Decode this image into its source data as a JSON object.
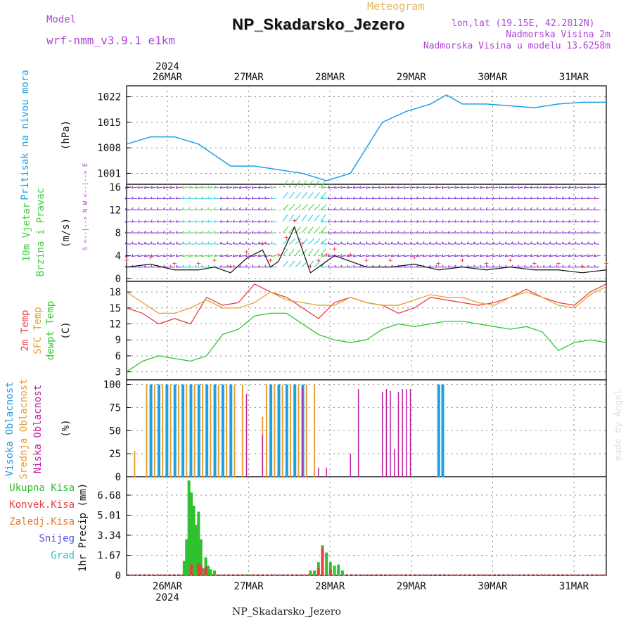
{
  "header": {
    "model_label": "Model",
    "model_name": "wrf-nmm_v3.9.1  e1km",
    "product": "Meteogram",
    "location": "NP_Skadarsko_Jezero",
    "lonlat": "lon,lat (19.15E, 42.2812N)",
    "elev": "Nadmorska Visina 2m",
    "model_elev": "Nadmorska Visina u modelu 13.6258m"
  },
  "footer": {
    "location": "NP_Skadarsko_Jezero",
    "credit": "made by Angel"
  },
  "colors": {
    "pressure": "#1ea0e6",
    "wind_purple": "#7a1fd0",
    "wind_cyan": "#18c8d0",
    "wind_green": "#40d040",
    "t2m": "#e84040",
    "tsfc": "#e8a030",
    "dewpt": "#30c830",
    "cloud_high": "#1ea0e6",
    "cloud_mid": "#e8a030",
    "cloud_low": "#c020a0",
    "precip_total": "#30c030",
    "precip_conv": "#e84040"
  },
  "chart_data": [
    {
      "type": "line",
      "panel": "pressure",
      "title": "",
      "ylabel": "Pritisak na nivou mora",
      "unit": "(hPa)",
      "x_top_year": "2024",
      "x_top": [
        "26MAR",
        "27MAR",
        "28MAR",
        "29MAR",
        "30MAR",
        "31MAR"
      ],
      "ylim": [
        998,
        1025
      ],
      "yticks": [
        1001,
        1008,
        1015,
        1022
      ],
      "grid": true,
      "series": [
        {
          "name": "",
          "x": [
            0,
            0.3,
            0.6,
            0.9,
            1.1,
            1.3,
            1.6,
            1.9,
            2.2,
            2.5,
            2.8,
            3.0,
            3.2,
            3.5,
            3.8,
            4.0,
            4.2,
            4.5,
            4.8,
            5.1,
            5.4,
            5.7,
            6.0
          ],
          "values": [
            1009,
            1011,
            1011,
            1009,
            1006,
            1003,
            1003,
            1002,
            1001,
            999,
            1001,
            1008,
            1015,
            1018,
            1020,
            1022.5,
            1020,
            1020,
            1019.5,
            1019,
            1020,
            1020.5,
            1020.5
          ]
        }
      ]
    },
    {
      "type": "line",
      "panel": "wind",
      "ylabel": "10m Vjetar Brzina i Pravac",
      "unit": "(m/s)",
      "direction_key": "S <--|--> N    W <--|--> E",
      "ylim": [
        -0.5,
        16.5
      ],
      "yticks": [
        0,
        4,
        8,
        12,
        16
      ],
      "grid": true,
      "series": [
        {
          "name": "",
          "x": [
            0,
            0.3,
            0.6,
            0.9,
            1.1,
            1.3,
            1.5,
            1.7,
            1.8,
            1.9,
            2.0,
            2.1,
            2.2,
            2.3,
            2.4,
            2.5,
            2.6,
            2.8,
            3.0,
            3.3,
            3.6,
            3.9,
            4.2,
            4.5,
            4.8,
            5.1,
            5.4,
            5.7,
            6.0
          ],
          "values": [
            2,
            2.5,
            1.5,
            1.5,
            2,
            1,
            3.5,
            5,
            2,
            3,
            6,
            9,
            5,
            1,
            2,
            3,
            4,
            3,
            2,
            2,
            2.5,
            1.5,
            2,
            1.5,
            2,
            1.5,
            1.5,
            1,
            1.5
          ]
        }
      ]
    },
    {
      "type": "line",
      "panel": "temperature",
      "ylabel": "2m Temp / SFC Temp / dewpt Temp",
      "unit": "(C)",
      "ylim": [
        1.5,
        20
      ],
      "yticks": [
        3,
        6,
        9,
        12,
        15,
        18
      ],
      "grid": true,
      "series": [
        {
          "name": "2m Temp",
          "x": [
            0,
            0.2,
            0.4,
            0.6,
            0.8,
            1.0,
            1.2,
            1.4,
            1.6,
            1.8,
            2.0,
            2.2,
            2.4,
            2.6,
            2.8,
            3.0,
            3.2,
            3.4,
            3.6,
            3.8,
            4.0,
            4.2,
            4.4,
            4.6,
            4.8,
            5.0,
            5.2,
            5.4,
            5.6,
            5.8,
            6.0
          ],
          "values": [
            15,
            14,
            12,
            13,
            12,
            17,
            15.5,
            16,
            19.5,
            18,
            17,
            15,
            13,
            16,
            17,
            16,
            15.5,
            14,
            15,
            17,
            16.5,
            16,
            15.5,
            16,
            17,
            18.5,
            17,
            16,
            15.5,
            18,
            19.5
          ]
        },
        {
          "name": "SFC Temp",
          "x": [
            0,
            0.2,
            0.4,
            0.6,
            0.8,
            1.0,
            1.2,
            1.4,
            1.6,
            1.8,
            2.0,
            2.2,
            2.4,
            2.6,
            2.8,
            3.0,
            3.2,
            3.4,
            3.6,
            3.8,
            4.0,
            4.2,
            4.4,
            4.6,
            4.8,
            5.0,
            5.2,
            5.4,
            5.6,
            5.8,
            6.0
          ],
          "values": [
            18,
            16,
            14,
            14,
            15,
            16.5,
            15,
            15,
            16,
            18,
            16.5,
            16,
            15.5,
            15.5,
            17,
            16,
            15.5,
            15.5,
            16.5,
            17.5,
            17,
            17,
            16,
            15.5,
            17,
            18,
            17,
            15.5,
            15,
            17.5,
            19
          ]
        },
        {
          "name": "dewpt Temp",
          "x": [
            0,
            0.2,
            0.4,
            0.6,
            0.8,
            1.0,
            1.2,
            1.4,
            1.6,
            1.8,
            2.0,
            2.2,
            2.4,
            2.6,
            2.8,
            3.0,
            3.2,
            3.4,
            3.6,
            3.8,
            4.0,
            4.2,
            4.4,
            4.6,
            4.8,
            5.0,
            5.2,
            5.4,
            5.6,
            5.8,
            6.0
          ],
          "values": [
            3,
            5,
            6,
            5.5,
            5,
            6,
            10,
            11,
            13.5,
            14,
            14,
            12,
            10,
            9,
            8.5,
            9,
            11,
            12,
            11.5,
            12,
            12.5,
            12.5,
            12,
            11.5,
            11,
            11.5,
            10.5,
            7,
            8.5,
            9,
            8.5
          ]
        }
      ]
    },
    {
      "type": "bar",
      "panel": "cloud",
      "ylabel": "Visoka Oblacnost / Srednja Oblacnost / Niska Oblacnost",
      "unit": "(%)",
      "ylim": [
        0,
        105
      ],
      "yticks": [
        0,
        25,
        50,
        75,
        100
      ],
      "grid": true,
      "series": [
        {
          "name": "Visoka Oblacnost",
          "x": [
            0.3,
            0.4,
            0.5,
            0.6,
            0.7,
            0.8,
            0.9,
            1.0,
            1.1,
            1.2,
            1.3,
            1.8,
            1.9,
            2.0,
            2.1,
            2.2,
            3.9,
            3.95
          ],
          "values": [
            100,
            100,
            100,
            100,
            100,
            100,
            100,
            100,
            100,
            100,
            100,
            100,
            100,
            100,
            100,
            100,
            100,
            100
          ]
        },
        {
          "name": "Srednja Oblacnost",
          "x": [
            0.1,
            0.25,
            0.35,
            0.45,
            0.55,
            0.65,
            0.75,
            0.85,
            0.95,
            1.05,
            1.15,
            1.25,
            1.35,
            1.45,
            1.7,
            1.75,
            1.85,
            1.95,
            2.05,
            2.15,
            2.25,
            2.35
          ],
          "values": [
            28,
            100,
            100,
            100,
            100,
            100,
            100,
            100,
            100,
            100,
            100,
            100,
            100,
            100,
            65,
            100,
            100,
            100,
            100,
            100,
            100,
            100
          ]
        },
        {
          "name": "Niska Oblacnost",
          "x": [
            1.5,
            1.7,
            2.2,
            2.4,
            2.5,
            2.8,
            2.9,
            3.2,
            3.25,
            3.3,
            3.35,
            3.4,
            3.45,
            3.5,
            3.55
          ],
          "values": [
            90,
            45,
            97,
            10,
            10,
            25,
            95,
            92,
            95,
            93,
            30,
            92,
            95,
            95,
            95
          ]
        }
      ]
    },
    {
      "type": "bar",
      "panel": "precip",
      "ylabel": "1hr Precip (mm)",
      "legend": [
        "Ukupna Kisa",
        "Konvek.Kisa",
        "Zaledj.Kisa",
        "Snijeg",
        "Grad"
      ],
      "ylim": [
        0,
        8.2
      ],
      "yticks": [
        0,
        1.67,
        3.34,
        5.01,
        6.68
      ],
      "x_bottom": [
        "26MAR",
        "27MAR",
        "28MAR",
        "29MAR",
        "30MAR",
        "31MAR"
      ],
      "x_bottom_year": "2024",
      "grid": true,
      "series": [
        {
          "name": "Ukupna Kisa",
          "x": [
            0.72,
            0.75,
            0.78,
            0.81,
            0.84,
            0.87,
            0.9,
            0.93,
            0.96,
            0.99,
            1.02,
            1.05,
            1.1,
            1.5,
            2.3,
            2.35,
            2.4,
            2.45,
            2.5,
            2.55,
            2.6,
            2.65,
            2.7
          ],
          "values": [
            1.2,
            3,
            7.9,
            6.9,
            5.8,
            4.2,
            5.3,
            3,
            0.6,
            1.5,
            0.8,
            0.5,
            0.4,
            0.1,
            0.4,
            0.4,
            1.1,
            2.5,
            1.9,
            1.1,
            0.8,
            0.9,
            0.4
          ]
        },
        {
          "name": "Konvek.Kisa",
          "x": [
            0.81,
            0.9,
            0.93,
            0.99,
            2.4,
            2.45,
            2.55
          ],
          "values": [
            0.9,
            1,
            0.8,
            0.7,
            0.6,
            2.3,
            0.5
          ]
        }
      ]
    }
  ]
}
